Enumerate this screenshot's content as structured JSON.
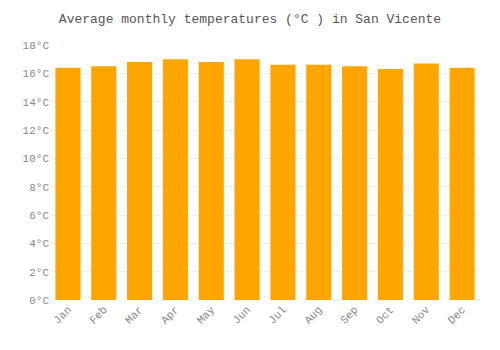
{
  "chart_data": {
    "type": "bar",
    "title": "Average monthly temperatures (°C ) in San Vicente",
    "categories": [
      "Jan",
      "Feb",
      "Mar",
      "Apr",
      "May",
      "Jun",
      "Jul",
      "Aug",
      "Sep",
      "Oct",
      "Nov",
      "Dec"
    ],
    "values": [
      16.4,
      16.5,
      16.8,
      17.0,
      16.8,
      17.0,
      16.6,
      16.6,
      16.5,
      16.3,
      16.7,
      16.4
    ],
    "color": "#FFA500",
    "ylim": [
      0,
      18
    ],
    "yticks": [
      {
        "value": 0,
        "label": "0°C"
      },
      {
        "value": 2,
        "label": "2°C"
      },
      {
        "value": 4,
        "label": "4°C"
      },
      {
        "value": 6,
        "label": "6°C"
      },
      {
        "value": 8,
        "label": "8°C"
      },
      {
        "value": 10,
        "label": "10°C"
      },
      {
        "value": 12,
        "label": "12°C"
      },
      {
        "value": 14,
        "label": "14°C"
      },
      {
        "value": 16,
        "label": "16°C"
      },
      {
        "value": 18,
        "label": "18°C"
      }
    ],
    "grid": true
  }
}
